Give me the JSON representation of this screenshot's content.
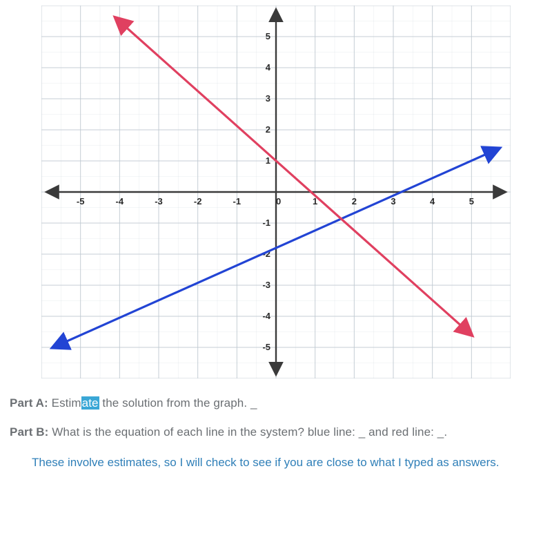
{
  "graph": {
    "type": "line",
    "xlim": [
      -6,
      6
    ],
    "ylim": [
      -6,
      6
    ],
    "xtick_labels": [
      "-5",
      "-4",
      "-3",
      "-2",
      "-1",
      "0",
      "1",
      "2",
      "3",
      "4",
      "5"
    ],
    "xtick_positions": [
      -5,
      -4,
      -3,
      -2,
      -1,
      0,
      1,
      2,
      3,
      4,
      5
    ],
    "ytick_labels": [
      "5",
      "4",
      "3",
      "2",
      "1",
      "0",
      "-1",
      "-2",
      "-3",
      "-4",
      "-5"
    ],
    "ytick_positions": [
      5,
      4,
      3,
      2,
      1,
      0,
      -1,
      -2,
      -3,
      -4,
      -5
    ],
    "background_color": "#ffffff",
    "grid_color": "#bfc9d1",
    "axis_color": "#3a3a3a",
    "tick_font_size": 13,
    "tick_font_color": "#2a2a2a",
    "tick_font_weight": "600",
    "grid_line_width": 1,
    "axis_line_width": 2.4,
    "plot_line_width": 3.2,
    "arrow_size": 9,
    "lines": [
      {
        "name": "blue",
        "color": "#2244d4",
        "x1": -5.7,
        "y1": -5.0,
        "x2": 5.7,
        "y2": 1.4
      },
      {
        "name": "red",
        "color": "#e04060",
        "x1": -4.1,
        "y1": 5.6,
        "x2": 5.0,
        "y2": -4.6
      }
    ]
  },
  "colors": {
    "question_text": "#6b6f73",
    "highlight_bg": "#3aa7d6",
    "highlight_fg": "#ffffff",
    "note_text": "#2f7fb8"
  },
  "text": {
    "partA_label": "Part A:",
    "partA_before": " Estim",
    "partA_highlight": "ate",
    "partA_after": " the solution from the graph.  _",
    "partB_label": "Part B:",
    "partB_body": " What is the equation of each line in the system?  blue line: _ and red line: _.",
    "note": "These involve estimates, so I will check to see if you are close to what I typed as answers."
  }
}
